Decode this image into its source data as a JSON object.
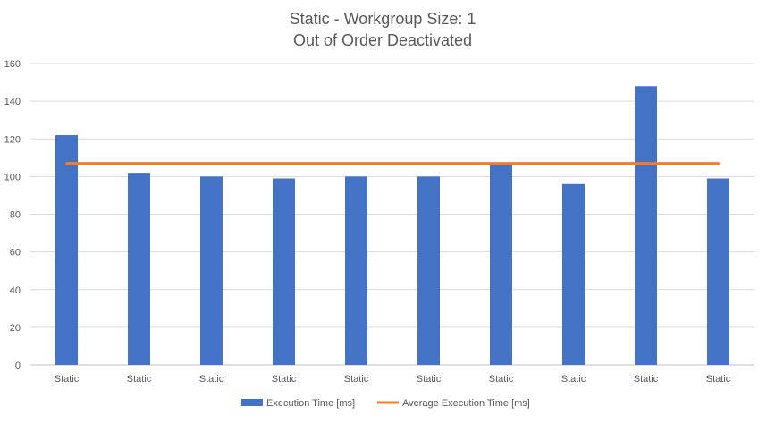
{
  "chart_data": {
    "type": "bar",
    "title": "Static - Workgroup Size: 1",
    "subtitle": "Out of Order Deactivated",
    "categories": [
      "Static",
      "Static",
      "Static",
      "Static",
      "Static",
      "Static",
      "Static",
      "Static",
      "Static",
      "Static"
    ],
    "series": [
      {
        "name": "Execution Time [ms]",
        "type": "bar",
        "color": "#4472C4",
        "values": [
          122,
          102,
          100,
          99,
          100,
          100,
          107,
          96,
          148,
          99
        ]
      },
      {
        "name": "Average Execution Time [ms]",
        "type": "line",
        "color": "#ED7D31",
        "values": [
          107,
          107,
          107,
          107,
          107,
          107,
          107,
          107,
          107,
          107
        ]
      }
    ],
    "ylim": [
      0,
      160
    ],
    "yticks": [
      0,
      20,
      40,
      60,
      80,
      100,
      120,
      140,
      160
    ],
    "grid": true,
    "legend_position": "bottom"
  }
}
